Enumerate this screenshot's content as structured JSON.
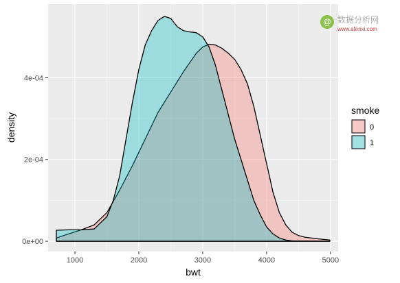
{
  "chart_data": {
    "type": "area",
    "xlabel": "bwt",
    "ylabel": "density",
    "xlim": [
      580,
      5120
    ],
    "ylim": [
      -2.5e-05,
      0.00058
    ],
    "x_ticks": [
      {
        "value": 1000,
        "label": "1000"
      },
      {
        "value": 2000,
        "label": "2000"
      },
      {
        "value": 3000,
        "label": "3000"
      },
      {
        "value": 4000,
        "label": "4000"
      },
      {
        "value": 5000,
        "label": "5000"
      }
    ],
    "y_ticks": [
      {
        "value": 0,
        "label": "0e+00"
      },
      {
        "value": 0.0002,
        "label": "2e-04"
      },
      {
        "value": 0.0004,
        "label": "4e-04"
      }
    ],
    "grid": true,
    "panel_background": "#ebebeb",
    "legend": {
      "title": "smoke",
      "position": "right",
      "entries": [
        {
          "label": "0",
          "color": "#f8766d"
        },
        {
          "label": "1",
          "color": "#00bfc4"
        }
      ]
    },
    "series": [
      {
        "legend_label": "0",
        "color": "#f8766d",
        "x": [
          709,
          900,
          1100,
          1300,
          1500,
          1700,
          1900,
          2100,
          2300,
          2500,
          2700,
          2900,
          3000,
          3100,
          3200,
          3300,
          3400,
          3500,
          3600,
          3700,
          3800,
          3900,
          4000,
          4100,
          4200,
          4300,
          4400,
          4500,
          4600,
          4800,
          4990
        ],
        "y": [
          8e-06,
          1.8e-05,
          2.8e-05,
          4e-05,
          7e-05,
          0.000125,
          0.000185,
          0.00025,
          0.000315,
          0.000365,
          0.000415,
          0.00046,
          0.000475,
          0.000482,
          0.00048,
          0.000472,
          0.00046,
          0.000445,
          0.00042,
          0.000385,
          0.00033,
          0.00026,
          0.00019,
          0.00012,
          7e-05,
          4e-05,
          2.2e-05,
          1.4e-05,
          1e-05,
          6e-06,
          3e-06
        ]
      },
      {
        "legend_label": "1",
        "color": "#00bfc4",
        "x": [
          709,
          900,
          1100,
          1300,
          1500,
          1600,
          1700,
          1800,
          1900,
          2000,
          2100,
          2200,
          2300,
          2400,
          2500,
          2600,
          2700,
          2800,
          2900,
          3000,
          3100,
          3200,
          3300,
          3400,
          3500,
          3600,
          3700,
          3800,
          3900,
          4000,
          4100,
          4200,
          4300,
          4400,
          4600,
          4990
        ],
        "y": [
          2.7e-05,
          2.8e-05,
          2.8e-05,
          3e-05,
          6e-05,
          0.0001,
          0.00016,
          0.00025,
          0.00034,
          0.00042,
          0.00048,
          0.000515,
          0.00054,
          0.00055,
          0.000545,
          0.000525,
          0.000515,
          0.000512,
          0.00051,
          0.0005,
          0.000475,
          0.00043,
          0.00037,
          0.00031,
          0.00025,
          0.0002,
          0.00015,
          0.0001,
          6.5e-05,
          3.5e-05,
          1.8e-05,
          8e-06,
          3e-06,
          1e-06,
          5e-07,
          0
        ]
      }
    ]
  },
  "watermark": {
    "glyph": "@",
    "text": "数据分析网",
    "subtext": "www.afenxi.com"
  }
}
